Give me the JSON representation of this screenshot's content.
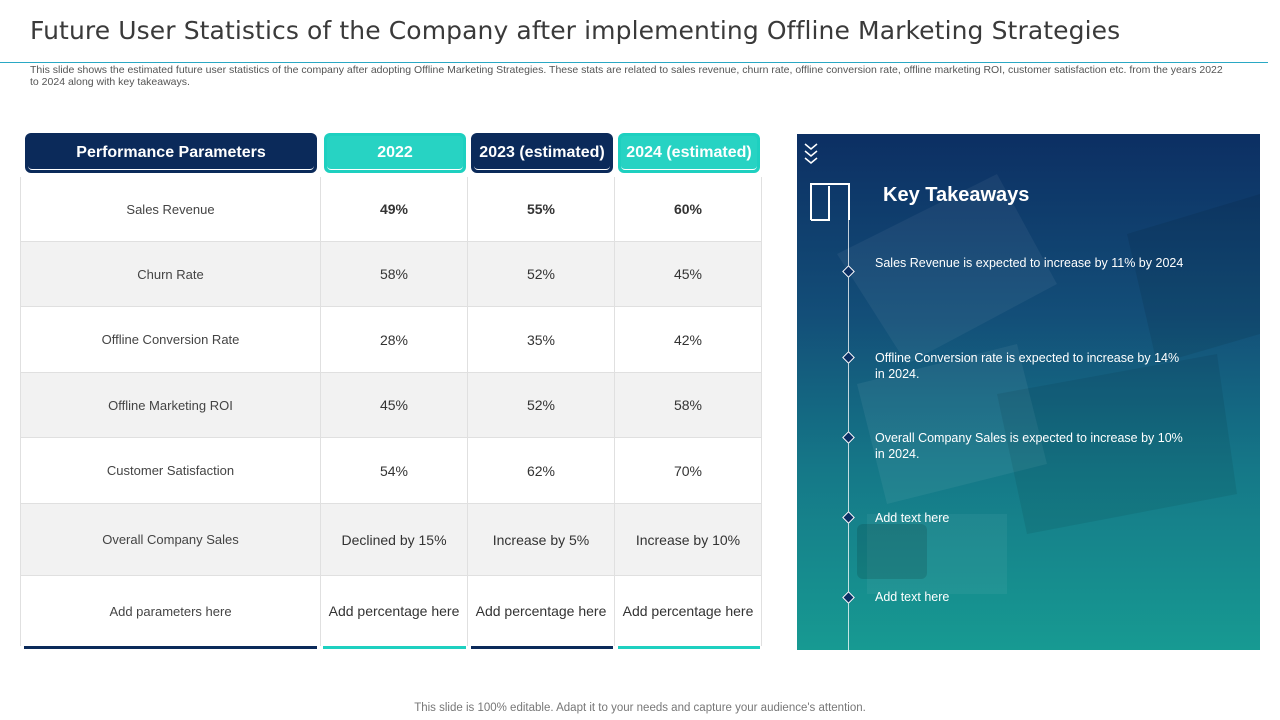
{
  "slide": {
    "title": "Future User Statistics of the Company after implementing Offline Marketing Strategies",
    "description": "This slide shows the estimated future user statistics of the company after adopting Offline Marketing Strategies. These stats are related to sales revenue, churn rate, offline conversion rate, offline marketing ROI, customer satisfaction etc. from the years 2022 to 2024 along with key takeaways.",
    "footer": "This slide is 100% editable. Adapt it to your needs and capture your audience's attention."
  },
  "table": {
    "headers": [
      "Performance Parameters",
      "2022",
      "2023 (estimated)",
      "2024 (estimated)"
    ],
    "rows": [
      {
        "param": "Sales Revenue",
        "values": [
          "49%",
          "55%",
          "60%"
        ]
      },
      {
        "param": "Churn  Rate",
        "values": [
          "58%",
          "52%",
          "45%"
        ]
      },
      {
        "param": "Offline  Conversion  Rate",
        "values": [
          "28%",
          "35%",
          "42%"
        ]
      },
      {
        "param": "Offline  Marketing  ROI",
        "values": [
          "45%",
          "52%",
          "58%"
        ]
      },
      {
        "param": "Customer Satisfaction",
        "values": [
          "54%",
          "62%",
          "70%"
        ]
      },
      {
        "param": "Overall  Company Sales",
        "values": [
          "Declined by 15%",
          "Increase by 5%",
          "Increase by 10%"
        ]
      },
      {
        "param": "Add parameters  here",
        "values": [
          "Add percentage here",
          "Add percentage here",
          "Add percentage here"
        ]
      }
    ]
  },
  "takeaways": {
    "heading": "Key Takeaways",
    "items": [
      "Sales Revenue  is expected to increase  by 11% by 2024",
      "Offline  Conversion  rate is expected to increase by 14% in 2024.",
      "Overall  Company Sales is expected to increase by 10% in 2024.",
      "Add text here",
      "Add text here"
    ]
  },
  "colors": {
    "navy": "#0b2a5a",
    "teal": "#1ed0c0",
    "accent_rule": "#2aa8c4"
  }
}
